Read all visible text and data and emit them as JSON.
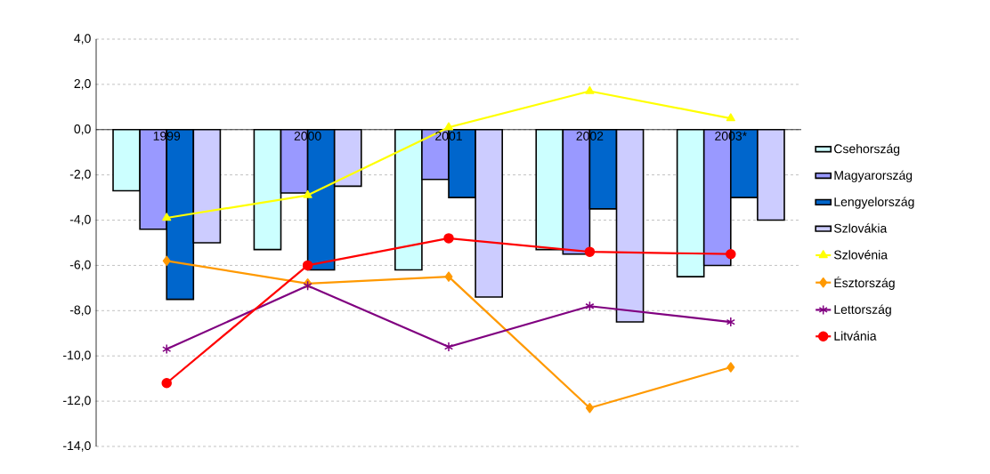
{
  "chart_data": {
    "type": "bar",
    "categories": [
      "1999",
      "2000",
      "2001",
      "2002",
      "2003*"
    ],
    "series": [
      {
        "name": "Csehország",
        "color": "#ccffff",
        "values": [
          -2.7,
          -5.3,
          -6.2,
          -5.3,
          -6.5
        ]
      },
      {
        "name": "Magyarország",
        "color": "#9999ff",
        "values": [
          -4.4,
          -2.8,
          -2.2,
          -5.5,
          -6.0
        ]
      },
      {
        "name": "Lengyelország",
        "color": "#0066cc",
        "values": [
          -7.5,
          -6.2,
          -3.0,
          -3.5,
          -3.0
        ]
      },
      {
        "name": "Szlovákia",
        "color": "#ccccff",
        "values": [
          -5.0,
          -2.5,
          -7.4,
          -8.5,
          -4.0
        ]
      },
      {
        "name": "Szlovénia",
        "type": "line",
        "marker": "triangle",
        "color": "#ffff00",
        "values": [
          -3.9,
          -2.9,
          0.1,
          1.7,
          0.5
        ]
      },
      {
        "name": "Észtország",
        "type": "line",
        "marker": "diamond",
        "color": "#ff9900",
        "values": [
          -5.8,
          -6.8,
          -6.5,
          -12.3,
          -10.5
        ]
      },
      {
        "name": "Lettország",
        "type": "line",
        "marker": "cross",
        "color": "#800080",
        "values": [
          -9.7,
          -6.9,
          -9.6,
          -7.8,
          -8.5
        ]
      },
      {
        "name": "Litvánia",
        "type": "line",
        "marker": "circle",
        "color": "#ff0000",
        "values": [
          -11.2,
          -6.0,
          -4.8,
          -5.4,
          -5.5
        ]
      }
    ],
    "ylim": [
      -14,
      4
    ],
    "yticks": [
      {
        "value": -14,
        "label": "-14,0"
      },
      {
        "value": -12,
        "label": "-12,0"
      },
      {
        "value": -10,
        "label": "-10,0"
      },
      {
        "value": -8,
        "label": "-8,0"
      },
      {
        "value": -6,
        "label": "-6,0"
      },
      {
        "value": -4,
        "label": "-4,0"
      },
      {
        "value": -2,
        "label": "-2,0"
      },
      {
        "value": 0,
        "label": "0,0"
      },
      {
        "value": 2,
        "label": "2,0"
      },
      {
        "value": 4,
        "label": "4,0"
      }
    ],
    "grid": "y",
    "legend": "right",
    "line_style": "solid"
  }
}
